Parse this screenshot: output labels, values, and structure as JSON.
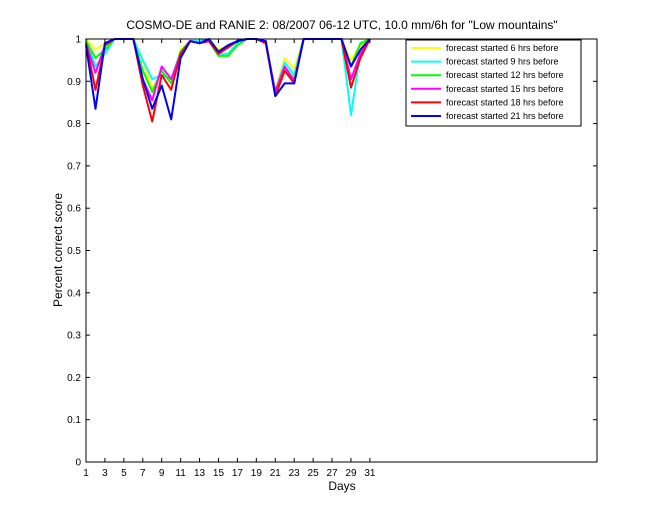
{
  "chart_data": {
    "type": "line",
    "title": "COSMO-DE and RANIE 2: 08/2007 06-12 UTC, 10.0 mm/6h for \"Low mountains\"",
    "xlabel": "Days",
    "ylabel": "Percent correct score",
    "xlim": [
      1,
      55
    ],
    "ylim": [
      0,
      1
    ],
    "xticks": [
      "1",
      "3",
      "5",
      "7",
      "9",
      "11",
      "13",
      "15",
      "17",
      "19",
      "21",
      "23",
      "25",
      "27",
      "29",
      "31"
    ],
    "xtick_values": [
      1,
      3,
      5,
      7,
      9,
      11,
      13,
      15,
      17,
      19,
      21,
      23,
      25,
      27,
      29,
      31
    ],
    "yticks": [
      "0",
      "0.1",
      "0.2",
      "0.3",
      "0.4",
      "0.5",
      "0.6",
      "0.7",
      "0.8",
      "0.9",
      "1"
    ],
    "ytick_values": [
      0,
      0.1,
      0.2,
      0.3,
      0.4,
      0.5,
      0.6,
      0.7,
      0.8,
      0.9,
      1
    ],
    "grid": false,
    "legend_position": "top-right",
    "x": [
      1,
      2,
      3,
      4,
      5,
      6,
      7,
      8,
      9,
      10,
      11,
      12,
      13,
      14,
      15,
      16,
      17,
      18,
      19,
      20,
      21,
      22,
      23,
      24,
      25,
      26,
      27,
      28,
      29,
      30,
      31
    ],
    "series": [
      {
        "name": "forecast started 6 hrs before",
        "color": "#ffff00",
        "values": [
          1.0,
          0.975,
          0.99,
          1.0,
          1.0,
          1.0,
          0.95,
          0.88,
          0.925,
          0.895,
          0.975,
          0.995,
          0.995,
          1.0,
          0.975,
          0.985,
          0.99,
          1.0,
          1.0,
          0.995,
          0.88,
          0.955,
          0.93,
          1.0,
          1.0,
          1.0,
          1.0,
          1.0,
          0.95,
          0.985,
          1.0
        ]
      },
      {
        "name": "forecast started 9 hrs before",
        "color": "#00ffff",
        "values": [
          1.0,
          0.935,
          0.965,
          1.0,
          1.0,
          1.0,
          0.95,
          0.905,
          0.915,
          0.905,
          0.97,
          0.995,
          0.995,
          1.0,
          0.965,
          0.965,
          0.99,
          1.0,
          1.0,
          0.99,
          0.875,
          0.945,
          0.915,
          1.0,
          1.0,
          1.0,
          1.0,
          1.0,
          0.82,
          0.97,
          1.0
        ]
      },
      {
        "name": "forecast started 12 hrs before",
        "color": "#00ff00",
        "values": [
          0.995,
          0.955,
          0.975,
          1.0,
          1.0,
          1.0,
          0.925,
          0.875,
          0.925,
          0.895,
          0.97,
          0.995,
          0.99,
          0.995,
          0.96,
          0.96,
          0.985,
          1.0,
          1.0,
          0.99,
          0.875,
          0.935,
          0.905,
          1.0,
          1.0,
          1.0,
          1.0,
          1.0,
          0.935,
          0.99,
          1.0
        ]
      },
      {
        "name": "forecast started 15 hrs before",
        "color": "#ff00ff",
        "values": [
          0.99,
          0.92,
          0.985,
          1.0,
          1.0,
          1.0,
          0.905,
          0.855,
          0.935,
          0.905,
          0.965,
          0.995,
          0.99,
          0.995,
          0.97,
          0.98,
          0.995,
          1.0,
          1.0,
          0.99,
          0.875,
          0.935,
          0.9,
          1.0,
          1.0,
          1.0,
          1.0,
          1.0,
          0.905,
          0.965,
          1.0
        ]
      },
      {
        "name": "forecast started 18 hrs before",
        "color": "#ff0000",
        "values": [
          0.99,
          0.88,
          0.985,
          1.0,
          1.0,
          1.0,
          0.89,
          0.805,
          0.915,
          0.88,
          0.965,
          0.995,
          0.99,
          0.995,
          0.965,
          0.98,
          0.995,
          1.0,
          1.0,
          0.99,
          0.865,
          0.925,
          0.895,
          1.0,
          1.0,
          1.0,
          1.0,
          1.0,
          0.885,
          0.955,
          1.0
        ]
      },
      {
        "name": "forecast started 21 hrs before",
        "color": "#0000ff",
        "values": [
          0.985,
          0.835,
          0.99,
          1.0,
          1.0,
          1.0,
          0.905,
          0.835,
          0.89,
          0.81,
          0.955,
          0.995,
          0.99,
          1.0,
          0.97,
          0.985,
          0.995,
          1.0,
          1.0,
          0.995,
          0.865,
          0.895,
          0.895,
          1.0,
          1.0,
          1.0,
          1.0,
          1.0,
          0.935,
          0.975,
          1.0
        ]
      }
    ]
  }
}
